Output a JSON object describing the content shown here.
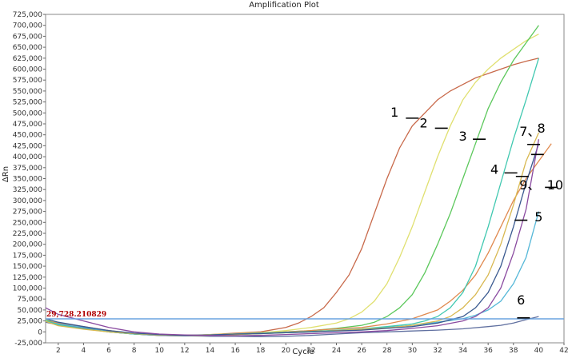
{
  "chart_data": {
    "type": "line",
    "title": "Amplification Plot",
    "xlabel": "Cycle",
    "ylabel": "ΔRn",
    "xlim": [
      1,
      42
    ],
    "ylim": [
      -25000,
      725000
    ],
    "xticks": [
      2,
      4,
      6,
      8,
      10,
      12,
      14,
      16,
      18,
      20,
      22,
      24,
      26,
      28,
      30,
      32,
      34,
      36,
      38,
      40,
      42
    ],
    "yticks": [
      -25000,
      0,
      25000,
      50000,
      75000,
      100000,
      125000,
      150000,
      175000,
      200000,
      225000,
      250000,
      275000,
      300000,
      325000,
      350000,
      375000,
      400000,
      425000,
      450000,
      475000,
      500000,
      525000,
      550000,
      575000,
      600000,
      625000,
      650000,
      675000,
      700000,
      725000
    ],
    "ytick_labels": [
      "-25,000",
      "0",
      "25,000",
      "50,000",
      "75,000",
      "100,000",
      "125,000",
      "150,000",
      "175,000",
      "200,000",
      "225,000",
      "250,000",
      "275,000",
      "300,000",
      "325,000",
      "350,000",
      "375,000",
      "400,000",
      "425,000",
      "450,000",
      "475,000",
      "500,000",
      "525,000",
      "550,000",
      "575,000",
      "600,000",
      "625,000",
      "650,000",
      "675,000",
      "700,000",
      "725,000"
    ],
    "threshold": {
      "value": 29728.210829,
      "label": "29,728.210829",
      "color": "#6aa3e0"
    },
    "grid": false,
    "series": [
      {
        "color": "#c8694a",
        "points": [
          [
            1,
            30000
          ],
          [
            2,
            15000
          ],
          [
            4,
            8000
          ],
          [
            6,
            3000
          ],
          [
            8,
            -5000
          ],
          [
            10,
            -8000
          ],
          [
            12,
            -9000
          ],
          [
            14,
            -6000
          ],
          [
            16,
            -3000
          ],
          [
            18,
            0
          ],
          [
            20,
            10000
          ],
          [
            21,
            20000
          ],
          [
            22,
            35000
          ],
          [
            23,
            55000
          ],
          [
            24,
            90000
          ],
          [
            25,
            130000
          ],
          [
            26,
            190000
          ],
          [
            27,
            270000
          ],
          [
            28,
            350000
          ],
          [
            29,
            420000
          ],
          [
            30,
            470000
          ],
          [
            31,
            500000
          ],
          [
            32,
            530000
          ],
          [
            33,
            550000
          ],
          [
            34,
            565000
          ],
          [
            35,
            580000
          ],
          [
            36,
            590000
          ],
          [
            37,
            600000
          ],
          [
            38,
            610000
          ],
          [
            39,
            618000
          ],
          [
            40,
            625000
          ]
        ]
      },
      {
        "color": "#e0e070",
        "points": [
          [
            1,
            28000
          ],
          [
            2,
            18000
          ],
          [
            4,
            10000
          ],
          [
            6,
            2000
          ],
          [
            8,
            -4000
          ],
          [
            10,
            -7000
          ],
          [
            12,
            -8000
          ],
          [
            14,
            -6000
          ],
          [
            16,
            -4000
          ],
          [
            18,
            -2000
          ],
          [
            20,
            3000
          ],
          [
            22,
            10000
          ],
          [
            24,
            20000
          ],
          [
            25,
            30000
          ],
          [
            26,
            45000
          ],
          [
            27,
            70000
          ],
          [
            28,
            110000
          ],
          [
            29,
            170000
          ],
          [
            30,
            240000
          ],
          [
            31,
            320000
          ],
          [
            32,
            400000
          ],
          [
            33,
            470000
          ],
          [
            34,
            530000
          ],
          [
            35,
            570000
          ],
          [
            36,
            600000
          ],
          [
            37,
            625000
          ],
          [
            38,
            645000
          ],
          [
            39,
            665000
          ],
          [
            40,
            680000
          ]
        ]
      },
      {
        "color": "#5cc85c",
        "points": [
          [
            1,
            26000
          ],
          [
            2,
            20000
          ],
          [
            4,
            10000
          ],
          [
            6,
            0
          ],
          [
            8,
            -5000
          ],
          [
            10,
            -8000
          ],
          [
            12,
            -9000
          ],
          [
            14,
            -8000
          ],
          [
            16,
            -6000
          ],
          [
            18,
            -4000
          ],
          [
            20,
            0
          ],
          [
            22,
            3000
          ],
          [
            24,
            8000
          ],
          [
            26,
            15000
          ],
          [
            27,
            22000
          ],
          [
            28,
            35000
          ],
          [
            29,
            55000
          ],
          [
            30,
            85000
          ],
          [
            31,
            135000
          ],
          [
            32,
            200000
          ],
          [
            33,
            270000
          ],
          [
            34,
            350000
          ],
          [
            35,
            430000
          ],
          [
            36,
            510000
          ],
          [
            37,
            570000
          ],
          [
            38,
            620000
          ],
          [
            39,
            660000
          ],
          [
            40,
            700000
          ]
        ]
      },
      {
        "color": "#e08a50",
        "points": [
          [
            1,
            25000
          ],
          [
            2,
            20000
          ],
          [
            4,
            12000
          ],
          [
            6,
            3000
          ],
          [
            8,
            -4000
          ],
          [
            10,
            -7000
          ],
          [
            12,
            -8000
          ],
          [
            14,
            -7000
          ],
          [
            16,
            -5000
          ],
          [
            18,
            -3000
          ],
          [
            20,
            0
          ],
          [
            22,
            3000
          ],
          [
            24,
            7000
          ],
          [
            26,
            10000
          ],
          [
            28,
            18000
          ],
          [
            30,
            30000
          ],
          [
            32,
            50000
          ],
          [
            33,
            70000
          ],
          [
            34,
            95000
          ],
          [
            35,
            130000
          ],
          [
            36,
            180000
          ],
          [
            37,
            240000
          ],
          [
            38,
            300000
          ],
          [
            39,
            350000
          ],
          [
            40,
            390000
          ],
          [
            41,
            430000
          ]
        ]
      },
      {
        "color": "#56b8d8",
        "points": [
          [
            1,
            24000
          ],
          [
            2,
            18000
          ],
          [
            4,
            10000
          ],
          [
            6,
            2000
          ],
          [
            8,
            -4000
          ],
          [
            10,
            -7000
          ],
          [
            12,
            -9000
          ],
          [
            14,
            -8000
          ],
          [
            16,
            -6000
          ],
          [
            18,
            -4000
          ],
          [
            20,
            -2000
          ],
          [
            22,
            0
          ],
          [
            24,
            3000
          ],
          [
            26,
            5000
          ],
          [
            28,
            10000
          ],
          [
            30,
            15000
          ],
          [
            32,
            22000
          ],
          [
            34,
            30000
          ],
          [
            35,
            38000
          ],
          [
            36,
            50000
          ],
          [
            37,
            70000
          ],
          [
            38,
            110000
          ],
          [
            39,
            170000
          ],
          [
            40,
            275000
          ]
        ]
      },
      {
        "color": "#6070a0",
        "points": [
          [
            1,
            22000
          ],
          [
            2,
            16000
          ],
          [
            4,
            8000
          ],
          [
            6,
            0
          ],
          [
            8,
            -5000
          ],
          [
            10,
            -8000
          ],
          [
            12,
            -9000
          ],
          [
            14,
            -10000
          ],
          [
            16,
            -10000
          ],
          [
            18,
            -11000
          ],
          [
            20,
            -10000
          ],
          [
            22,
            -8000
          ],
          [
            24,
            -5000
          ],
          [
            26,
            -2000
          ],
          [
            28,
            0
          ],
          [
            30,
            2000
          ],
          [
            32,
            4000
          ],
          [
            34,
            7000
          ],
          [
            36,
            12000
          ],
          [
            37,
            15000
          ],
          [
            38,
            20000
          ],
          [
            39,
            28000
          ],
          [
            40,
            35000
          ]
        ]
      },
      {
        "color": "#40c8b0",
        "points": [
          [
            1,
            26000
          ],
          [
            2,
            16000
          ],
          [
            4,
            7000
          ],
          [
            6,
            0
          ],
          [
            8,
            -5000
          ],
          [
            10,
            -7000
          ],
          [
            12,
            -8000
          ],
          [
            14,
            -7000
          ],
          [
            16,
            -5000
          ],
          [
            18,
            -3000
          ],
          [
            20,
            -1000
          ],
          [
            22,
            1000
          ],
          [
            24,
            4000
          ],
          [
            26,
            7000
          ],
          [
            28,
            12000
          ],
          [
            30,
            18000
          ],
          [
            31,
            25000
          ],
          [
            32,
            35000
          ],
          [
            33,
            55000
          ],
          [
            34,
            90000
          ],
          [
            35,
            150000
          ],
          [
            36,
            240000
          ],
          [
            37,
            340000
          ],
          [
            38,
            440000
          ],
          [
            39,
            530000
          ],
          [
            40,
            625000
          ]
        ]
      },
      {
        "color": "#d8b850",
        "points": [
          [
            1,
            24000
          ],
          [
            2,
            14000
          ],
          [
            4,
            6000
          ],
          [
            6,
            0
          ],
          [
            8,
            -4000
          ],
          [
            10,
            -7000
          ],
          [
            12,
            -8000
          ],
          [
            14,
            -8000
          ],
          [
            16,
            -6000
          ],
          [
            18,
            -4000
          ],
          [
            20,
            -2000
          ],
          [
            22,
            0
          ],
          [
            24,
            3000
          ],
          [
            26,
            6000
          ],
          [
            28,
            9000
          ],
          [
            30,
            15000
          ],
          [
            32,
            25000
          ],
          [
            33,
            35000
          ],
          [
            34,
            55000
          ],
          [
            35,
            85000
          ],
          [
            36,
            130000
          ],
          [
            37,
            200000
          ],
          [
            38,
            290000
          ],
          [
            39,
            390000
          ],
          [
            40,
            455000
          ]
        ]
      },
      {
        "color": "#3a5a90",
        "points": [
          [
            1,
            30000
          ],
          [
            2,
            22000
          ],
          [
            4,
            12000
          ],
          [
            6,
            3000
          ],
          [
            8,
            -3000
          ],
          [
            10,
            -6000
          ],
          [
            12,
            -8000
          ],
          [
            14,
            -7000
          ],
          [
            16,
            -5000
          ],
          [
            18,
            -4000
          ],
          [
            20,
            -2000
          ],
          [
            22,
            0
          ],
          [
            24,
            2000
          ],
          [
            26,
            4000
          ],
          [
            28,
            8000
          ],
          [
            30,
            12000
          ],
          [
            32,
            20000
          ],
          [
            34,
            35000
          ],
          [
            35,
            55000
          ],
          [
            36,
            90000
          ],
          [
            37,
            150000
          ],
          [
            38,
            240000
          ],
          [
            39,
            340000
          ],
          [
            40,
            430000
          ]
        ]
      },
      {
        "color": "#8a4aa0",
        "points": [
          [
            1,
            55000
          ],
          [
            2,
            40000
          ],
          [
            4,
            25000
          ],
          [
            6,
            10000
          ],
          [
            8,
            0
          ],
          [
            10,
            -5000
          ],
          [
            12,
            -7000
          ],
          [
            14,
            -8000
          ],
          [
            16,
            -9000
          ],
          [
            18,
            -8000
          ],
          [
            20,
            -6000
          ],
          [
            22,
            -4000
          ],
          [
            24,
            -2000
          ],
          [
            26,
            0
          ],
          [
            28,
            3000
          ],
          [
            30,
            8000
          ],
          [
            32,
            14000
          ],
          [
            34,
            25000
          ],
          [
            35,
            35000
          ],
          [
            36,
            55000
          ],
          [
            37,
            100000
          ],
          [
            38,
            180000
          ],
          [
            39,
            280000
          ],
          [
            40,
            440000
          ]
        ]
      }
    ],
    "annotations": [
      {
        "label": "1",
        "x": 30.0,
        "y": 488000,
        "tx": 28.6,
        "ty": 491000
      },
      {
        "label": "2",
        "x": 32.3,
        "y": 465000,
        "tx": 30.9,
        "ty": 467000
      },
      {
        "label": "3",
        "x": 35.3,
        "y": 440000,
        "tx": 34.0,
        "ty": 437000
      },
      {
        "label": "4",
        "x": 37.8,
        "y": 363000,
        "tx": 36.5,
        "ty": 361000
      },
      {
        "label": "5",
        "x": 38.6,
        "y": 255000,
        "tx": 40.0,
        "ty": 252000
      },
      {
        "label": "6",
        "x": 38.8,
        "y": 32000,
        "tx": 38.6,
        "ty": 63000
      },
      {
        "label": "7、",
        "x": 39.6,
        "y": 428000,
        "tx": 39.3,
        "ty": 448000
      },
      {
        "label": "8",
        "x": 39.9,
        "y": 405000,
        "tx": 40.2,
        "ty": 455000
      },
      {
        "label": "9、",
        "x": 38.7,
        "y": 355000,
        "tx": 39.3,
        "ty": 325000
      },
      {
        "label": "10",
        "x": 41.0,
        "y": 330000,
        "tx": 41.3,
        "ty": 325000
      }
    ]
  }
}
